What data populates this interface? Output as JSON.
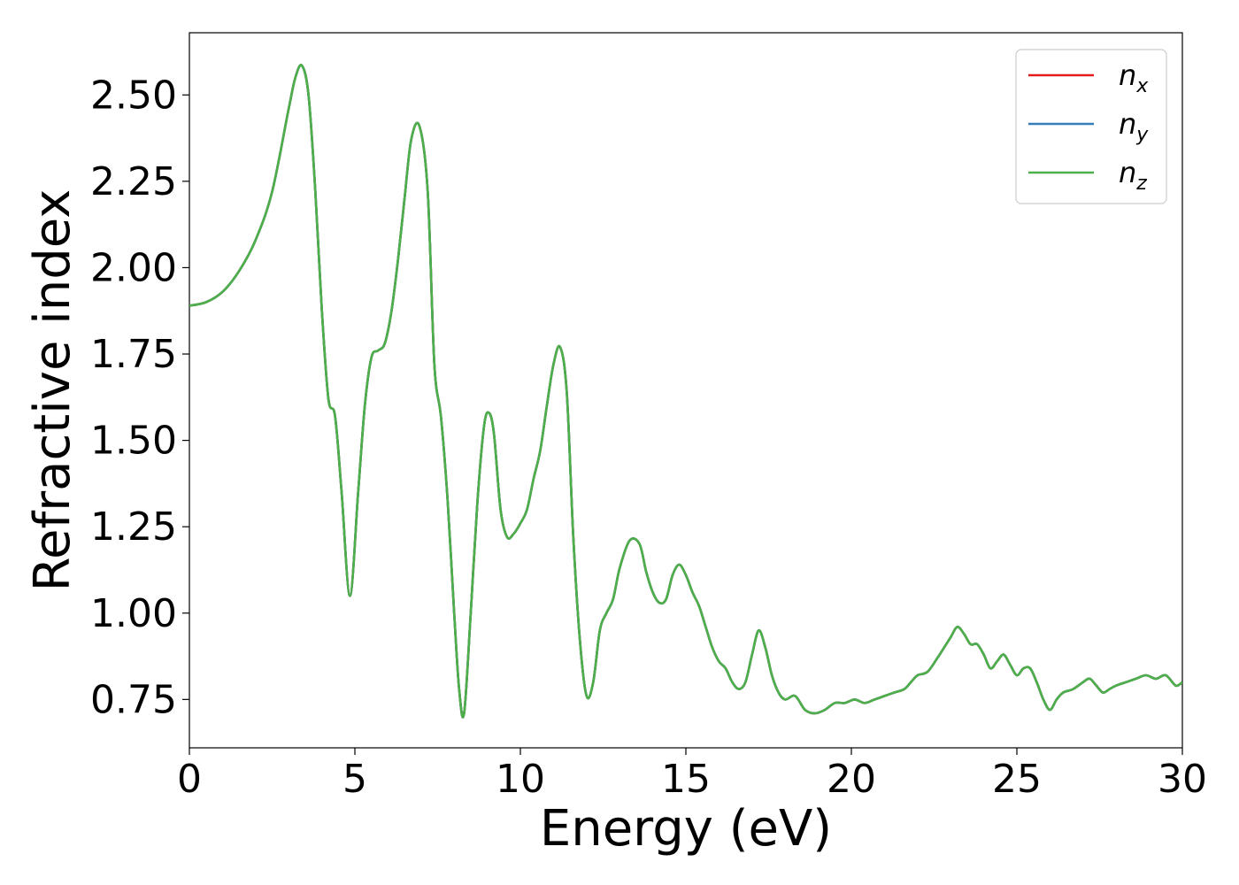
{
  "chart_data": {
    "type": "line",
    "xlabel": "Energy (eV)",
    "ylabel": "Refractive index",
    "xlim": [
      0,
      30
    ],
    "ylim": [
      0.61,
      2.68
    ],
    "x_ticks": [
      "0",
      "5",
      "10",
      "15",
      "20",
      "25",
      "30"
    ],
    "y_ticks": [
      "0.75",
      "1.00",
      "1.25",
      "1.50",
      "1.75",
      "2.00",
      "2.25",
      "2.50"
    ],
    "grid": false,
    "legend_position": "top-right",
    "legend": [
      {
        "base": "n",
        "sub": "x",
        "color": "#e41a1c"
      },
      {
        "base": "n",
        "sub": "y",
        "color": "#377eb8"
      },
      {
        "base": "n",
        "sub": "z",
        "color": "#4daf4a"
      }
    ],
    "series": [
      {
        "name": "n_x",
        "color": "#e41a1c"
      },
      {
        "name": "n_y",
        "color": "#377eb8"
      },
      {
        "name": "n_z",
        "color": "#4daf4a"
      }
    ],
    "x": [
      0.0,
      0.5,
      1.0,
      1.5,
      2.0,
      2.5,
      3.0,
      3.2,
      3.4,
      3.6,
      3.8,
      4.0,
      4.2,
      4.4,
      4.6,
      4.85,
      5.1,
      5.3,
      5.5,
      5.7,
      5.9,
      6.1,
      6.3,
      6.5,
      6.7,
      6.95,
      7.2,
      7.4,
      7.6,
      7.8,
      8.0,
      8.15,
      8.3,
      8.5,
      8.7,
      8.9,
      9.05,
      9.2,
      9.4,
      9.6,
      9.8,
      10.0,
      10.2,
      10.4,
      10.6,
      10.8,
      11.0,
      11.2,
      11.4,
      11.6,
      11.8,
      12.0,
      12.2,
      12.4,
      12.6,
      12.8,
      13.0,
      13.3,
      13.6,
      13.8,
      14.0,
      14.2,
      14.4,
      14.6,
      14.8,
      15.0,
      15.2,
      15.4,
      15.6,
      15.8,
      16.0,
      16.2,
      16.4,
      16.6,
      16.8,
      17.0,
      17.2,
      17.4,
      17.6,
      17.8,
      18.0,
      18.3,
      18.6,
      18.9,
      19.2,
      19.5,
      19.8,
      20.1,
      20.4,
      20.7,
      21.0,
      21.3,
      21.6,
      21.8,
      22.0,
      22.3,
      22.6,
      22.8,
      23.0,
      23.2,
      23.4,
      23.6,
      23.8,
      24.0,
      24.2,
      24.4,
      24.6,
      24.8,
      25.0,
      25.2,
      25.4,
      25.6,
      25.8,
      26.0,
      26.2,
      26.4,
      26.7,
      27.0,
      27.2,
      27.4,
      27.6,
      27.8,
      28.0,
      28.3,
      28.6,
      28.9,
      29.2,
      29.5,
      29.8,
      30.0
    ],
    "y": [
      1.89,
      1.9,
      1.93,
      1.99,
      2.08,
      2.22,
      2.46,
      2.55,
      2.585,
      2.5,
      2.23,
      1.88,
      1.62,
      1.57,
      1.35,
      1.05,
      1.35,
      1.6,
      1.74,
      1.76,
      1.78,
      1.87,
      2.02,
      2.2,
      2.37,
      2.41,
      2.22,
      1.72,
      1.57,
      1.33,
      1.0,
      0.78,
      0.71,
      1.0,
      1.32,
      1.54,
      1.58,
      1.52,
      1.3,
      1.22,
      1.23,
      1.26,
      1.3,
      1.39,
      1.47,
      1.6,
      1.72,
      1.77,
      1.64,
      1.22,
      0.92,
      0.76,
      0.8,
      0.95,
      1.0,
      1.04,
      1.13,
      1.21,
      1.2,
      1.12,
      1.06,
      1.03,
      1.04,
      1.11,
      1.14,
      1.11,
      1.06,
      1.02,
      0.96,
      0.9,
      0.86,
      0.84,
      0.8,
      0.78,
      0.8,
      0.88,
      0.95,
      0.9,
      0.82,
      0.77,
      0.75,
      0.76,
      0.72,
      0.71,
      0.72,
      0.74,
      0.74,
      0.75,
      0.74,
      0.75,
      0.76,
      0.77,
      0.78,
      0.8,
      0.82,
      0.83,
      0.87,
      0.9,
      0.93,
      0.96,
      0.94,
      0.91,
      0.91,
      0.88,
      0.84,
      0.86,
      0.88,
      0.85,
      0.82,
      0.84,
      0.84,
      0.8,
      0.75,
      0.72,
      0.75,
      0.77,
      0.78,
      0.8,
      0.81,
      0.79,
      0.77,
      0.78,
      0.79,
      0.8,
      0.81,
      0.82,
      0.81,
      0.82,
      0.79,
      0.8
    ]
  }
}
